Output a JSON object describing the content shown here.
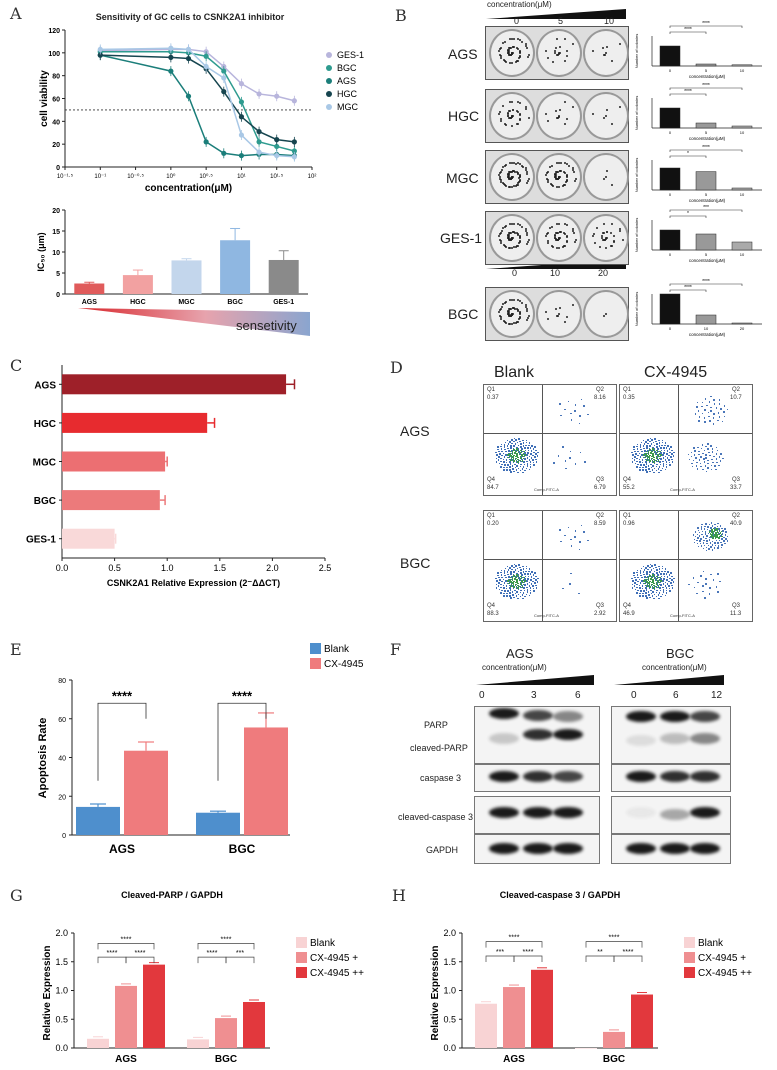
{
  "panels": {
    "A": "A",
    "B": "B",
    "C": "C",
    "D": "D",
    "E": "E",
    "F": "F",
    "G": "G",
    "H": "H"
  },
  "panel_a": {
    "title": "Sensitivity of GC cells to CSNK2A1 inhibitor",
    "ylabel": "cell viability",
    "xlabel": "concentration(μM)",
    "yticks": [
      "0",
      "20",
      "40",
      "60",
      "80",
      "100",
      "120"
    ],
    "xticks": [
      "10⁻¹·⁵",
      "10⁻¹",
      "10⁻⁰·⁵",
      "10⁰",
      "10⁰·⁵",
      "10¹",
      "10¹·⁵",
      "10²"
    ],
    "legend": [
      {
        "name": "GES-1",
        "color": "#b8b5dc"
      },
      {
        "name": "BGC",
        "color": "#2e9b8f"
      },
      {
        "name": "AGS",
        "color": "#1b7e7a"
      },
      {
        "name": "HGC",
        "color": "#16454f"
      },
      {
        "name": "MGC",
        "color": "#a9c8e6"
      }
    ]
  },
  "panel_a2": {
    "ylabel": "IC₅₀ (μm)",
    "yticks": [
      "0",
      "5",
      "10",
      "15",
      "20"
    ],
    "categories": [
      "AGS",
      "HGC",
      "MGC",
      "BGC",
      "GES-1"
    ],
    "sens_label": "sensetivity"
  },
  "panel_b": {
    "conc_label": "concentration(μM)",
    "conc_ticks_1": [
      "0",
      "5",
      "10"
    ],
    "conc_ticks_2": [
      "0",
      "10",
      "20"
    ],
    "rows": [
      "AGS",
      "HGC",
      "MGC",
      "GES-1",
      "BGC"
    ],
    "ylabel": "Number of colonies",
    "xlabel": "concentration(μM)",
    "sig": [
      "****",
      "****",
      "****",
      "****",
      "*",
      "****",
      "*",
      "***",
      "****",
      "****"
    ]
  },
  "panel_c": {
    "xlabel": "CSNK2A1 Relative Expression (2⁻ΔΔCT)",
    "xticks": [
      "0.0",
      "0.5",
      "1.0",
      "1.5",
      "2.0",
      "2.5"
    ]
  },
  "panel_d": {
    "col1": "Blank",
    "col2": "CX-4945",
    "row1": "AGS",
    "row2": "BGC",
    "quads": [
      {
        "q1": "Q1",
        "v1": "0.37",
        "q2": "Q2",
        "v2": "8.16",
        "q3": "Q3",
        "v3": "6.79",
        "q4": "Q4",
        "v4": "84.7"
      },
      {
        "q1": "Q1",
        "v1": "0.35",
        "q2": "Q2",
        "v2": "10.7",
        "q3": "Q3",
        "v3": "33.7",
        "q4": "Q4",
        "v4": "55.2"
      },
      {
        "q1": "Q1",
        "v1": "0.20",
        "q2": "Q2",
        "v2": "8.59",
        "q3": "Q3",
        "v3": "2.92",
        "q4": "Q4",
        "v4": "88.3"
      },
      {
        "q1": "Q1",
        "v1": "0.96",
        "q2": "Q2",
        "v2": "40.9",
        "q3": "Q3",
        "v3": "11.3",
        "q4": "Q4",
        "v4": "46.9"
      }
    ],
    "xaxis": "Comp-FITC-A",
    "yaxis": "Comp-PE-A"
  },
  "panel_f": {
    "cell1": "AGS",
    "cell2": "BGC",
    "conc_label": "concentration(μM)",
    "conc1": [
      "0",
      "3",
      "6"
    ],
    "conc2": [
      "0",
      "6",
      "12"
    ],
    "proteins": [
      "PARP",
      "cleaved-PARP",
      "caspase 3",
      "cleaved-caspase 3",
      "GAPDH"
    ]
  },
  "chart_data": [
    {
      "id": "A-top",
      "type": "line",
      "title": "Sensitivity of GC cells to CSNK2A1 inhibitor",
      "xlabel": "concentration(μM)",
      "ylabel": "cell viability",
      "ylim": [
        0,
        120
      ],
      "x_log10": [
        -1,
        0,
        0.25,
        0.5,
        0.75,
        1,
        1.25,
        1.5,
        1.75
      ],
      "series": [
        {
          "name": "GES-1",
          "values": [
            102,
            103,
            103,
            101,
            88,
            73,
            64,
            62,
            58
          ]
        },
        {
          "name": "BGC",
          "values": [
            101,
            101,
            100,
            97,
            84,
            57,
            22,
            18,
            14
          ]
        },
        {
          "name": "AGS",
          "values": [
            98,
            84,
            62,
            22,
            12,
            10,
            11,
            11,
            10
          ]
        },
        {
          "name": "HGC",
          "values": [
            98,
            96,
            95,
            86,
            66,
            44,
            31,
            24,
            22
          ]
        },
        {
          "name": "MGC",
          "values": [
            103,
            104,
            103,
            88,
            78,
            28,
            13,
            10,
            9
          ]
        }
      ]
    },
    {
      "id": "A-bottom",
      "type": "bar",
      "ylabel": "IC₅₀ (μm)",
      "ylim": [
        0,
        20
      ],
      "categories": [
        "AGS",
        "HGC",
        "MGC",
        "BGC",
        "GES-1"
      ],
      "values": [
        2.5,
        4.5,
        8,
        12.8,
        8.1
      ],
      "errors": [
        0.3,
        1.2,
        0.4,
        2.8,
        2.2
      ],
      "colors": [
        "#e05b5b",
        "#f2a1a1",
        "#c3d6ec",
        "#8fb7e1",
        "#8a8a8a"
      ]
    },
    {
      "id": "B-bars",
      "type": "bar",
      "ylabel": "Number of colonies",
      "xlabel": "concentration(μM)",
      "groups": [
        {
          "name": "AGS",
          "categories": [
            "0",
            "5",
            "10"
          ],
          "values": [
            100,
            10,
            6
          ]
        },
        {
          "name": "HGC",
          "categories": [
            "0",
            "5",
            "10"
          ],
          "values": [
            100,
            25,
            10
          ]
        },
        {
          "name": "MGC",
          "categories": [
            "0",
            "5",
            "10"
          ],
          "values": [
            110,
            92,
            10
          ]
        },
        {
          "name": "GES-1",
          "categories": [
            "0",
            "5",
            "10"
          ],
          "values": [
            100,
            80,
            40
          ]
        },
        {
          "name": "BGC",
          "categories": [
            "0",
            "10",
            "20"
          ],
          "values": [
            150,
            45,
            5
          ]
        }
      ]
    },
    {
      "id": "C",
      "type": "bar",
      "orientation": "horizontal",
      "xlabel": "CSNK2A1 Relative Expression (2⁻ΔΔCT)",
      "xlim": [
        0,
        2.5
      ],
      "categories": [
        "AGS",
        "HGC",
        "MGC",
        "BGC",
        "GES-1"
      ],
      "values": [
        2.13,
        1.38,
        0.98,
        0.93,
        0.5
      ],
      "errors": [
        0.08,
        0.07,
        0.02,
        0.05,
        0.01
      ],
      "colors": [
        "#9e2029",
        "#e72b2f",
        "#ec6f72",
        "#ec7a7b",
        "#f9d9d9"
      ]
    },
    {
      "id": "E",
      "type": "bar",
      "ylabel": "Apoptosis Rate",
      "ylim": [
        0,
        80
      ],
      "categories": [
        "AGS",
        "BGC"
      ],
      "series": [
        {
          "name": "Blank",
          "values": [
            14.5,
            11.5
          ],
          "errors": [
            1.5,
            0.8
          ],
          "color": "#4e8fcd"
        },
        {
          "name": "CX-4945",
          "values": [
            43.5,
            55.5
          ],
          "errors": [
            4.5,
            7.5
          ],
          "color": "#ef7b7d"
        }
      ],
      "annotations": [
        "****",
        "****"
      ]
    },
    {
      "id": "G",
      "type": "bar",
      "title": "Cleaved-PARP / GAPDH",
      "ylabel": "Relative Expression",
      "ylim": [
        0,
        2.0
      ],
      "categories": [
        "AGS",
        "BGC"
      ],
      "series": [
        {
          "name": "Blank",
          "values": [
            0.16,
            0.15
          ],
          "color": "#f8d3d4"
        },
        {
          "name": "CX-4945 +",
          "values": [
            1.08,
            0.52
          ],
          "color": "#ef8f91"
        },
        {
          "name": "CX-4945 ++",
          "values": [
            1.45,
            0.8
          ],
          "color": "#e2383d"
        }
      ],
      "annotations": [
        "****",
        "****",
        "****",
        "****",
        "****",
        "***"
      ]
    },
    {
      "id": "H",
      "type": "bar",
      "title": "Cleaved-caspase 3 / GAPDH",
      "ylabel": "Relative Expression",
      "ylim": [
        0,
        2.0
      ],
      "categories": [
        "AGS",
        "BGC"
      ],
      "series": [
        {
          "name": "Blank",
          "values": [
            0.77,
            0.0
          ],
          "color": "#f8d3d4"
        },
        {
          "name": "CX-4945 +",
          "values": [
            1.06,
            0.28
          ],
          "color": "#ef8f91"
        },
        {
          "name": "CX-4945 ++",
          "values": [
            1.36,
            0.93
          ],
          "color": "#e2383d"
        }
      ],
      "annotations": [
        "****",
        "***",
        "****",
        "****",
        "**",
        "****"
      ]
    }
  ]
}
